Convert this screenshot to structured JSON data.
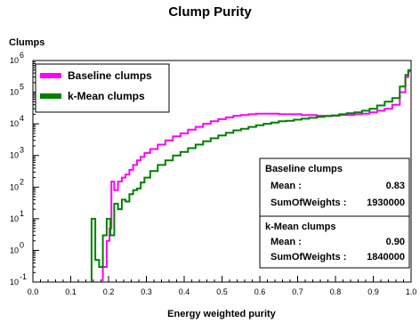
{
  "chart_data": {
    "type": "line",
    "title": "Clump Purity",
    "ylabel": "Clumps",
    "xlabel": "Energy weighted purity",
    "xlim": [
      0.0,
      1.0
    ],
    "ylim": [
      0.1,
      1000000
    ],
    "yscale": "log",
    "x_ticks": [
      "0.0",
      "0.1",
      "0.2",
      "0.3",
      "0.4",
      "0.5",
      "0.6",
      "0.7",
      "0.8",
      "0.9",
      "1.0"
    ],
    "y_ticks": [
      {
        "base": "10",
        "exp": "-1"
      },
      {
        "base": "10",
        "exp": "0"
      },
      {
        "base": "10",
        "exp": "1"
      },
      {
        "base": "10",
        "exp": "2"
      },
      {
        "base": "10",
        "exp": "3"
      },
      {
        "base": "10",
        "exp": "4"
      },
      {
        "base": "10",
        "exp": "5"
      },
      {
        "base": "10",
        "exp": "6"
      }
    ],
    "legend": {
      "position": "top-left",
      "entries": [
        "Baseline clumps",
        "k-Mean clumps"
      ]
    },
    "colors": {
      "Baseline clumps": "#ff00ff",
      "k-Mean clumps": "#008000"
    },
    "series": [
      {
        "name": "Baseline clumps",
        "points": [
          [
            0.19,
            0.3
          ],
          [
            0.2,
            2
          ],
          [
            0.205,
            5
          ],
          [
            0.21,
            150
          ],
          [
            0.22,
            80
          ],
          [
            0.23,
            150
          ],
          [
            0.24,
            200
          ],
          [
            0.25,
            250
          ],
          [
            0.26,
            350
          ],
          [
            0.27,
            500
          ],
          [
            0.28,
            700
          ],
          [
            0.29,
            900
          ],
          [
            0.3,
            1200
          ],
          [
            0.32,
            1600
          ],
          [
            0.34,
            2200
          ],
          [
            0.36,
            3000
          ],
          [
            0.38,
            4000
          ],
          [
            0.4,
            5000
          ],
          [
            0.42,
            6500
          ],
          [
            0.44,
            8000
          ],
          [
            0.46,
            10000
          ],
          [
            0.48,
            12000
          ],
          [
            0.5,
            14000
          ],
          [
            0.52,
            16000
          ],
          [
            0.54,
            18000
          ],
          [
            0.56,
            19000
          ],
          [
            0.58,
            20000
          ],
          [
            0.6,
            21000
          ],
          [
            0.62,
            21000
          ],
          [
            0.64,
            21000
          ],
          [
            0.66,
            20000
          ],
          [
            0.68,
            20000
          ],
          [
            0.7,
            20000
          ],
          [
            0.72,
            19000
          ],
          [
            0.74,
            19000
          ],
          [
            0.76,
            18000
          ],
          [
            0.78,
            18000
          ],
          [
            0.8,
            18000
          ],
          [
            0.82,
            19000
          ],
          [
            0.84,
            19000
          ],
          [
            0.86,
            20000
          ],
          [
            0.88,
            21000
          ],
          [
            0.9,
            23000
          ],
          [
            0.92,
            26000
          ],
          [
            0.94,
            30000
          ],
          [
            0.96,
            40000
          ],
          [
            0.98,
            100000
          ],
          [
            0.99,
            300000
          ],
          [
            0.995,
            450000
          ]
        ]
      },
      {
        "name": "k-Mean clumps",
        "points": [
          [
            0.16,
            10
          ],
          [
            0.17,
            0.5
          ],
          [
            0.18,
            0.3
          ],
          [
            0.19,
            3
          ],
          [
            0.2,
            10
          ],
          [
            0.21,
            3
          ],
          [
            0.22,
            30
          ],
          [
            0.23,
            20
          ],
          [
            0.24,
            40
          ],
          [
            0.25,
            35
          ],
          [
            0.26,
            60
          ],
          [
            0.27,
            80
          ],
          [
            0.28,
            90
          ],
          [
            0.29,
            140
          ],
          [
            0.3,
            200
          ],
          [
            0.32,
            320
          ],
          [
            0.34,
            500
          ],
          [
            0.36,
            700
          ],
          [
            0.38,
            1000
          ],
          [
            0.4,
            1300
          ],
          [
            0.42,
            1700
          ],
          [
            0.44,
            2200
          ],
          [
            0.46,
            2800
          ],
          [
            0.48,
            3500
          ],
          [
            0.5,
            4300
          ],
          [
            0.52,
            5200
          ],
          [
            0.54,
            6200
          ],
          [
            0.56,
            7000
          ],
          [
            0.58,
            8000
          ],
          [
            0.6,
            9000
          ],
          [
            0.62,
            10000
          ],
          [
            0.64,
            11000
          ],
          [
            0.66,
            12000
          ],
          [
            0.68,
            12500
          ],
          [
            0.7,
            13500
          ],
          [
            0.72,
            14500
          ],
          [
            0.74,
            15500
          ],
          [
            0.76,
            16500
          ],
          [
            0.78,
            17500
          ],
          [
            0.8,
            18500
          ],
          [
            0.82,
            20000
          ],
          [
            0.84,
            21500
          ],
          [
            0.86,
            23000
          ],
          [
            0.88,
            26000
          ],
          [
            0.9,
            30000
          ],
          [
            0.92,
            38000
          ],
          [
            0.94,
            50000
          ],
          [
            0.96,
            65000
          ],
          [
            0.98,
            150000
          ],
          [
            0.99,
            350000
          ],
          [
            0.995,
            500000
          ]
        ]
      }
    ],
    "stats": [
      {
        "title": "Baseline clumps",
        "rows": [
          {
            "label": "Mean :",
            "value": "0.83"
          },
          {
            "label": "SumOfWeights :",
            "value": "1930000"
          }
        ]
      },
      {
        "title": "k-Mean clumps",
        "rows": [
          {
            "label": "Mean :",
            "value": "0.90"
          },
          {
            "label": "SumOfWeights :",
            "value": "1840000"
          }
        ]
      }
    ]
  }
}
